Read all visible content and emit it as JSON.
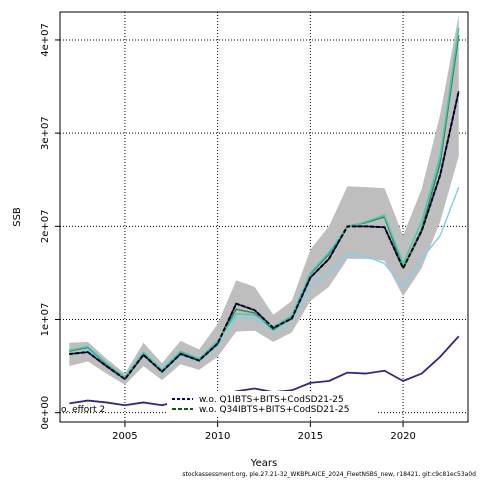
{
  "chart_data": {
    "type": "line",
    "xlabel": "Years",
    "ylabel": "SSB",
    "xlim": [
      2001.5,
      2023.5
    ],
    "ylim": [
      -1000000,
      43000000
    ],
    "grid": true,
    "x_ticks": [
      2005,
      2010,
      2015,
      2020
    ],
    "x_tick_labels": [
      "2005",
      "2010",
      "2015",
      "2020"
    ],
    "y_ticks": [
      0,
      10000000,
      20000000,
      30000000,
      40000000
    ],
    "y_tick_labels": [
      "0e+00",
      "1e+07",
      "2e+07",
      "3e+07",
      "4e+07"
    ],
    "footer": "stockassessment.org, ple.27.21-32_WKBPLAICE_2024_FleetNSBS_new, r18421, git:c9c81ec53a0d",
    "x": [
      2002,
      2003,
      2004,
      2005,
      2006,
      2007,
      2008,
      2009,
      2010,
      2011,
      2012,
      2013,
      2014,
      2015,
      2016,
      2017,
      2018,
      2019,
      2020,
      2021,
      2022,
      2023
    ],
    "band": {
      "lower": [
        5000000,
        5500000,
        4200000,
        3000000,
        5000000,
        3500000,
        5200000,
        4600000,
        6000000,
        8700000,
        8800000,
        7600000,
        8600000,
        12000000,
        13500000,
        16500000,
        16500000,
        16300000,
        12500000,
        15500000,
        20500000,
        27500000
      ],
      "upper": [
        7500000,
        7600000,
        5800000,
        4200000,
        7500000,
        5300000,
        7700000,
        6800000,
        9500000,
        14200000,
        13500000,
        10500000,
        12000000,
        17500000,
        20000000,
        24300000,
        24200000,
        24100000,
        19000000,
        24000000,
        32000000,
        42700000
      ]
    },
    "band_color": "#bebebe",
    "series": [
      {
        "name": "",
        "color": "#00008b",
        "dash": "none",
        "width": 1.5,
        "values": [
          6300000,
          6500000,
          5000000,
          3600000,
          6200000,
          4400000,
          6300000,
          5600000,
          7400000,
          11700000,
          11000000,
          9100000,
          10100000,
          14500000,
          16500000,
          20000000,
          20000000,
          19900000,
          15500000,
          19500000,
          25500000,
          34500000
        ]
      },
      {
        "name": "",
        "color": "#000000",
        "dash": "4,2",
        "width": 2,
        "values": [
          6300000,
          6500000,
          5000000,
          3600000,
          6200000,
          4400000,
          6300000,
          5600000,
          7400000,
          11700000,
          11000000,
          9100000,
          10100000,
          14500000,
          16500000,
          20000000,
          20000000,
          19900000,
          15500000,
          19500000,
          25500000,
          34500000
        ]
      },
      {
        "name": "",
        "color": "#87ceeb",
        "dash": "none",
        "width": 1.5,
        "values": [
          6200000,
          6700000,
          5100000,
          3600000,
          6300000,
          4300000,
          6200000,
          5500000,
          7200000,
          10200000,
          10100000,
          8700000,
          10000000,
          13500000,
          15000000,
          17000000,
          16800000,
          16000000,
          13500000,
          16500000,
          19000000,
          24200000
        ]
      },
      {
        "name": "",
        "color": "#2e8b57",
        "dash": "none",
        "width": 1.5,
        "values": [
          6600000,
          7000000,
          5200000,
          3700000,
          6400000,
          4500000,
          6500000,
          5700000,
          7600000,
          11100000,
          10700000,
          8900000,
          10300000,
          14900000,
          17000000,
          20000000,
          20400000,
          21000000,
          15500000,
          19700000,
          26800000,
          40500000
        ]
      },
      {
        "name": "",
        "color": "#48c9b0",
        "dash": "none",
        "width": 1.5,
        "values": [
          6700000,
          7100000,
          5300000,
          3800000,
          6500000,
          4600000,
          6600000,
          5800000,
          7700000,
          10600000,
          10500000,
          9200000,
          10400000,
          15000000,
          17200000,
          19900000,
          20500000,
          21200000,
          16000000,
          20500000,
          27500000,
          41300000
        ]
      },
      {
        "name": "",
        "color": "#2f2a80",
        "dash": "none",
        "width": 1.8,
        "values": [
          1000000,
          1300000,
          1100000,
          800000,
          1100000,
          800000,
          1300000,
          1200000,
          1700000,
          2300000,
          2600000,
          2200000,
          2400000,
          3200000,
          3400000,
          4300000,
          4200000,
          4500000,
          3400000,
          4200000,
          6000000,
          8200000
        ]
      }
    ],
    "legend": [
      {
        "label": "w.o. Q1IBTS+BITS+CodSD21-25",
        "color": "#00008b",
        "dash": "3,2"
      },
      {
        "label": "w.o. Q34IBTS+BITS+CodSD21-25",
        "color": "#006400",
        "dash": "4,2"
      }
    ],
    "legend_fragment": "o. effort 2"
  }
}
